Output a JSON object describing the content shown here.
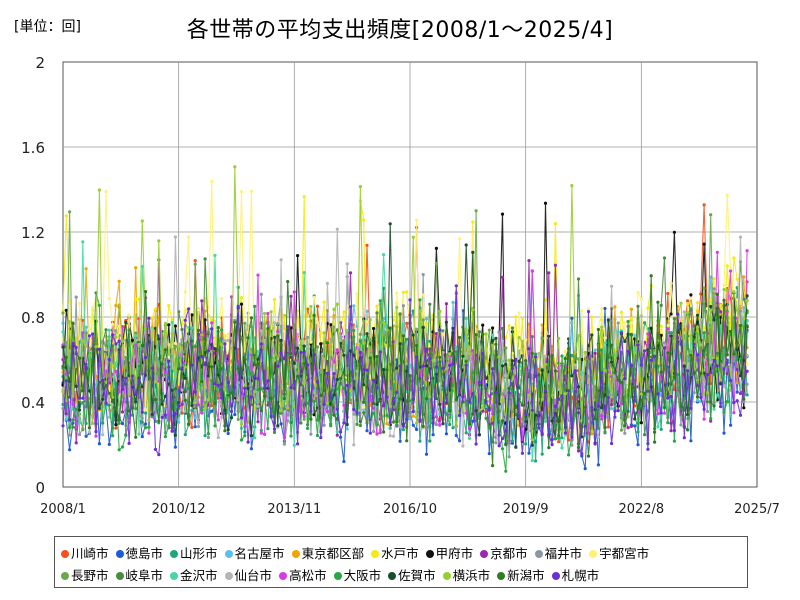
{
  "chart_data": {
    "type": "line",
    "title": "各世帯の平均支出頻度[2008/1～2025/4]",
    "unit_label": "[単位：回]",
    "xlabel": "",
    "ylabel": "",
    "ylim": [
      0,
      2
    ],
    "y_ticks": [
      "0",
      "0.4",
      "0.8",
      "1.2",
      "1.6",
      "2"
    ],
    "x_ticks": [
      "2008/1",
      "2010/12",
      "2013/11",
      "2016/10",
      "2019/9",
      "2022/8",
      "2025/7"
    ],
    "grid": true,
    "legend_position": "bottom",
    "x_range": [
      "2008/1",
      "2025/7"
    ],
    "series": [
      {
        "name": "川崎市",
        "color": "#f4511e",
        "seed": 1,
        "base": 0.58,
        "high": 1.33
      },
      {
        "name": "徳島市",
        "color": "#1e5bd6",
        "seed": 2,
        "base": 0.42,
        "high": 0.86
      },
      {
        "name": "山形市",
        "color": "#1fa67a",
        "seed": 3,
        "base": 0.5,
        "high": 0.98
      },
      {
        "name": "名古屋市",
        "color": "#5bc0eb",
        "seed": 4,
        "base": 0.55,
        "high": 1.05
      },
      {
        "name": "東京都区部",
        "color": "#f0a500",
        "seed": 5,
        "base": 0.57,
        "high": 1.12
      },
      {
        "name": "水戸市",
        "color": "#f5ea14",
        "seed": 6,
        "base": 0.66,
        "high": 1.47
      },
      {
        "name": "甲府市",
        "color": "#111111",
        "seed": 7,
        "base": 0.56,
        "high": 1.41
      },
      {
        "name": "京都市",
        "color": "#9c27b0",
        "seed": 8,
        "base": 0.48,
        "high": 1.1
      },
      {
        "name": "福井市",
        "color": "#8c97a6",
        "seed": 9,
        "base": 0.5,
        "high": 1.02
      },
      {
        "name": "宇都宮市",
        "color": "#fff176",
        "seed": 10,
        "base": 0.63,
        "high": 1.49
      },
      {
        "name": "長野市",
        "color": "#6aa84f",
        "seed": 11,
        "base": 0.55,
        "high": 1.33
      },
      {
        "name": "岐阜市",
        "color": "#4a8c3f",
        "seed": 12,
        "base": 0.54,
        "high": 1.12
      },
      {
        "name": "金沢市",
        "color": "#45d9a0",
        "seed": 13,
        "base": 0.51,
        "high": 1.18
      },
      {
        "name": "仙台市",
        "color": "#b5b5b5",
        "seed": 14,
        "base": 0.49,
        "high": 1.22
      },
      {
        "name": "高松市",
        "color": "#d63ce8",
        "seed": 15,
        "base": 0.5,
        "high": 1.12
      },
      {
        "name": "大阪市",
        "color": "#27a844",
        "seed": 16,
        "base": 0.47,
        "high": 0.98
      },
      {
        "name": "佐賀市",
        "color": "#1b4d2e",
        "seed": 17,
        "base": 0.54,
        "high": 1.32
      },
      {
        "name": "横浜市",
        "color": "#9acd32",
        "seed": 18,
        "base": 0.58,
        "high": 1.51
      },
      {
        "name": "新潟市",
        "color": "#2e7d1f",
        "seed": 19,
        "base": 0.5,
        "high": 1.08
      },
      {
        "name": "札幌市",
        "color": "#6a2fd9",
        "seed": 20,
        "base": 0.47,
        "high": 0.96
      }
    ]
  }
}
